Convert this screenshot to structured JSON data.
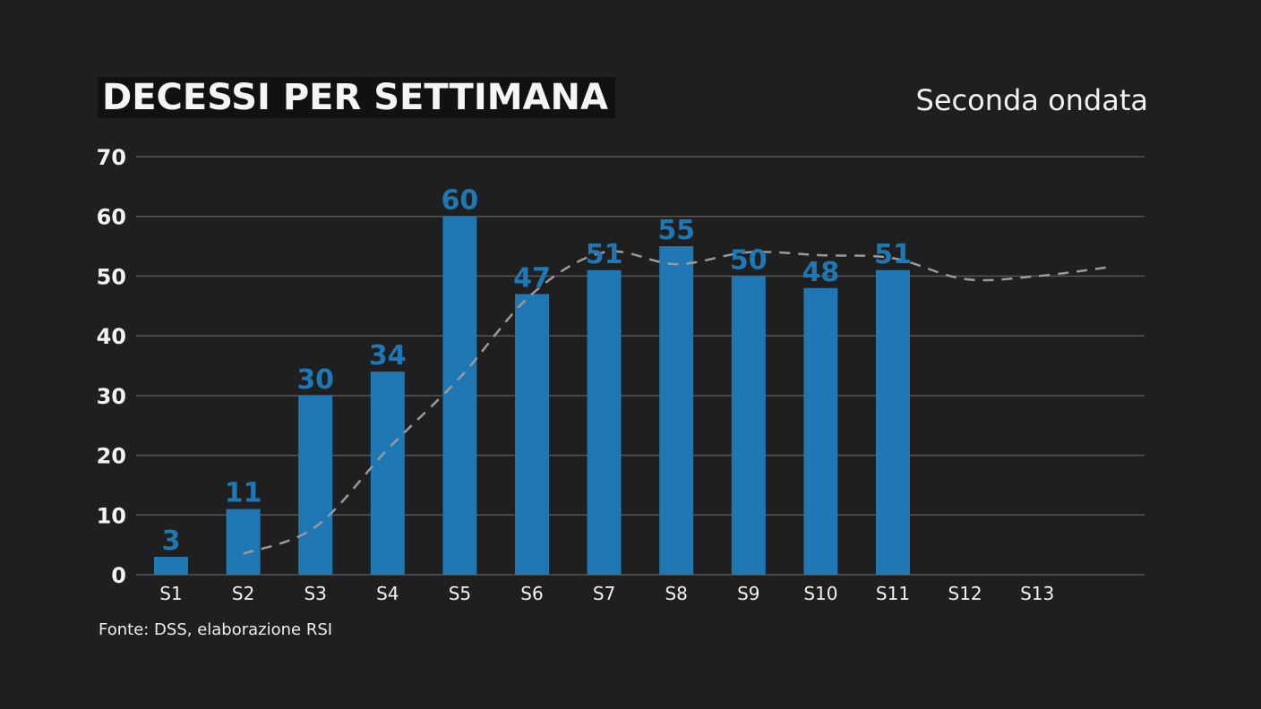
{
  "title": "DECESSI PER SETTIMANA",
  "subtitle": "Seconda ondata",
  "source": "Fonte: DSS, elaborazione RSI",
  "colors": {
    "background": "#1f1f1f",
    "bar": "#1f77b4",
    "bar_label": "#1f77b4",
    "trend": "#9a9a9a",
    "grid": "#555555",
    "text": "#f2f2f2"
  },
  "chart_data": {
    "type": "bar",
    "categories": [
      "S1",
      "S2",
      "S3",
      "S4",
      "S5",
      "S6",
      "S7",
      "S8",
      "S9",
      "S10",
      "S11",
      "S12",
      "S13"
    ],
    "series": [
      {
        "type": "bar",
        "values": [
          3,
          11,
          30,
          34,
          60,
          47,
          51,
          55,
          50,
          48,
          51,
          null,
          null
        ],
        "data_labels": [
          "3",
          "11",
          "30",
          "34",
          "60",
          "47",
          "51",
          "55",
          "50",
          "48",
          "51",
          "",
          ""
        ]
      },
      {
        "type": "line",
        "style": "dashed",
        "x": [
          "S2",
          "S3",
          "S4",
          "S5",
          "S6",
          "S7",
          "S8",
          "S9",
          "S10",
          "S11",
          "S12",
          "S13",
          "S14"
        ],
        "values": [
          3.5,
          8,
          21,
          33,
          47,
          54,
          52,
          54,
          53.5,
          53,
          49.5,
          50,
          51.5
        ]
      }
    ],
    "ylim": [
      0,
      70
    ],
    "yticks": [
      "0",
      "10",
      "20",
      "30",
      "40",
      "50",
      "60",
      "70"
    ],
    "grid": true,
    "legend": "none"
  }
}
